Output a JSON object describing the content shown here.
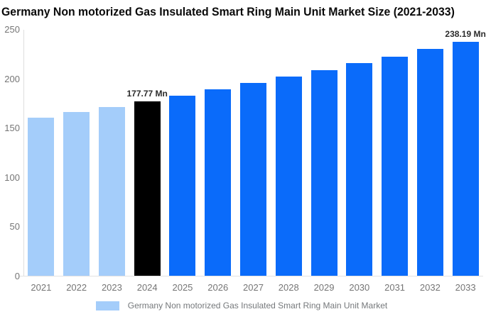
{
  "title": "Germany Non motorized Gas Insulated Smart Ring Main Unit Market Size (2021-2033)",
  "colors": {
    "light_blue": "#a4cdfa",
    "highlight_black": "#000000",
    "bright_blue": "#0a6bfa",
    "axis_line": "#dedede",
    "tick_text": "#757575",
    "value_label_text": "#2b2b2b",
    "background": "#ffffff"
  },
  "chart_data": {
    "type": "bar",
    "title": "Germany Non motorized Gas Insulated Smart Ring Main Unit Market Size (2021-2033)",
    "categories": [
      "2021",
      "2022",
      "2023",
      "2024",
      "2025",
      "2026",
      "2027",
      "2028",
      "2029",
      "2030",
      "2031",
      "2032",
      "2033"
    ],
    "values": [
      161.24,
      166.57,
      172.08,
      177.77,
      183.65,
      189.72,
      195.99,
      202.47,
      209.16,
      216.08,
      223.22,
      230.6,
      238.19
    ],
    "unit": "Mn",
    "xlabel": "",
    "ylabel": "",
    "yticks": [
      0,
      50,
      100,
      150,
      200,
      250
    ],
    "ylim": [
      0,
      250
    ],
    "grid": false,
    "legend_position": "bottom",
    "bar_colors": [
      "#a4cdfa",
      "#a4cdfa",
      "#a4cdfa",
      "#000000",
      "#0a6bfa",
      "#0a6bfa",
      "#0a6bfa",
      "#0a6bfa",
      "#0a6bfa",
      "#0a6bfa",
      "#0a6bfa",
      "#0a6bfa",
      "#0a6bfa"
    ],
    "annotations": [
      {
        "category": "2024",
        "index": 3,
        "text": "177.77 Mn"
      },
      {
        "category": "2033",
        "index": 12,
        "text": "238.19 Mn"
      }
    ]
  },
  "legend": {
    "label": "Germany Non motorized Gas Insulated Smart Ring Main Unit Market",
    "swatch_color": "#a4cdfa"
  }
}
